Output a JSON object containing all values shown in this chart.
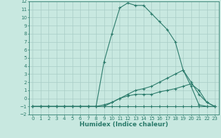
{
  "x": [
    0,
    1,
    2,
    3,
    4,
    5,
    6,
    7,
    8,
    9,
    10,
    11,
    12,
    13,
    14,
    15,
    16,
    17,
    18,
    19,
    20,
    21,
    22,
    23
  ],
  "series1": [
    -1,
    -1,
    -1,
    -1,
    -1,
    -1,
    -1,
    -1,
    -1,
    -1,
    -1,
    -1,
    -1,
    -1,
    -1,
    -1,
    -1,
    -1,
    -1,
    -1,
    -1,
    -1,
    -1,
    -1
  ],
  "series2": [
    -1,
    -1,
    -1,
    -1,
    -1,
    -1,
    -1,
    -1,
    -1,
    -1,
    -0.5,
    0,
    0.3,
    0.5,
    0.5,
    0.5,
    0.8,
    1.0,
    1.2,
    1.5,
    1.8,
    1.0,
    -0.5,
    -1
  ],
  "series3": [
    -1,
    -1,
    -1,
    -1,
    -1,
    -1,
    -1,
    -1,
    -1,
    -0.8,
    -0.5,
    0,
    0.5,
    1.0,
    1.2,
    1.5,
    2.0,
    2.5,
    3.0,
    3.5,
    2.0,
    0.5,
    -0.5,
    -1
  ],
  "series4": [
    -1,
    -1,
    -1,
    -1,
    -1,
    -1,
    -1,
    -1,
    -1,
    4.5,
    8.0,
    11.2,
    11.8,
    11.5,
    11.5,
    10.5,
    9.5,
    8.5,
    7.0,
    3.5,
    1.5,
    -0.8,
    -1.0,
    -1
  ],
  "color": "#2a7a6a",
  "bg_color": "#c8e8e0",
  "grid_color": "#a8ccc5",
  "xlabel": "Humidex (Indice chaleur)",
  "xlim": [
    -0.5,
    23.5
  ],
  "ylim": [
    -2,
    12
  ],
  "xticks": [
    0,
    1,
    2,
    3,
    4,
    5,
    6,
    7,
    8,
    9,
    10,
    11,
    12,
    13,
    14,
    15,
    16,
    17,
    18,
    19,
    20,
    21,
    22,
    23
  ],
  "yticks": [
    -2,
    -1,
    0,
    1,
    2,
    3,
    4,
    5,
    6,
    7,
    8,
    9,
    10,
    11,
    12
  ],
  "marker": "+",
  "markersize": 3.0,
  "linewidth": 0.8,
  "xlabel_fontsize": 6.5,
  "tick_fontsize": 5.0
}
